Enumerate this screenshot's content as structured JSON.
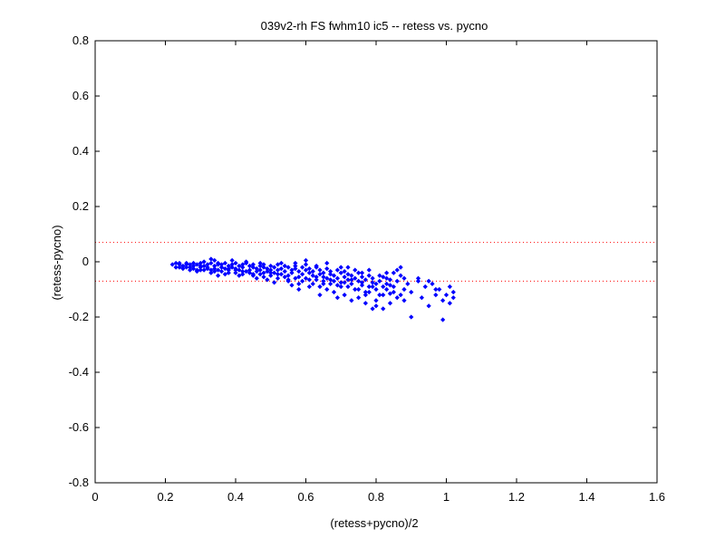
{
  "chart_data": {
    "type": "scatter",
    "title": "039v2-rh FS fwhm10 ic5 -- retess vs. pycno",
    "xlabel": "(retess+pycno)/2",
    "ylabel": "(retess-pycno)",
    "xlim": [
      0,
      1.6
    ],
    "ylim": [
      -0.8,
      0.8
    ],
    "xticks": [
      0,
      0.2,
      0.4,
      0.6,
      0.8,
      1,
      1.2,
      1.4,
      1.6
    ],
    "yticks": [
      -0.8,
      -0.6,
      -0.4,
      -0.2,
      0,
      0.2,
      0.4,
      0.6,
      0.8
    ],
    "xtick_labels": [
      "0",
      "0.2",
      "0.4",
      "0.6",
      "0.8",
      "1",
      "1.2",
      "1.4",
      "1.6"
    ],
    "ytick_labels": [
      "-0.8",
      "-0.6",
      "-0.4",
      "-0.2",
      "0",
      "0.2",
      "0.4",
      "0.6",
      "0.8"
    ],
    "grid": false,
    "reference_lines": [
      {
        "y": 0.07,
        "style": "dotted",
        "color": "#ff0000"
      },
      {
        "y": -0.07,
        "style": "dotted",
        "color": "#ff0000"
      }
    ],
    "series": [
      {
        "marker": "point",
        "color": "#0000ff",
        "points": [
          [
            0.22,
            -0.01
          ],
          [
            0.23,
            -0.02
          ],
          [
            0.23,
            -0.005
          ],
          [
            0.24,
            -0.01
          ],
          [
            0.24,
            -0.02
          ],
          [
            0.25,
            -0.015
          ],
          [
            0.26,
            -0.005
          ],
          [
            0.27,
            -0.01
          ],
          [
            0.27,
            -0.02
          ],
          [
            0.28,
            -0.015
          ],
          [
            0.28,
            -0.025
          ],
          [
            0.29,
            -0.01
          ],
          [
            0.29,
            -0.03
          ],
          [
            0.3,
            -0.02
          ],
          [
            0.3,
            -0.005
          ],
          [
            0.31,
            -0.015
          ],
          [
            0.31,
            -0.03
          ],
          [
            0.32,
            -0.01
          ],
          [
            0.32,
            -0.02
          ],
          [
            0.33,
            -0.005
          ],
          [
            0.33,
            0.01
          ],
          [
            0.33,
            -0.03
          ],
          [
            0.34,
            -0.015
          ],
          [
            0.34,
            -0.025
          ],
          [
            0.35,
            -0.01
          ],
          [
            0.35,
            -0.03
          ],
          [
            0.35,
            -0.005
          ],
          [
            0.36,
            -0.02
          ],
          [
            0.36,
            -0.01
          ],
          [
            0.37,
            -0.025
          ],
          [
            0.37,
            -0.005
          ],
          [
            0.38,
            -0.015
          ],
          [
            0.38,
            -0.03
          ],
          [
            0.39,
            -0.01
          ],
          [
            0.39,
            -0.02
          ],
          [
            0.4,
            -0.005
          ],
          [
            0.4,
            -0.025
          ],
          [
            0.4,
            -0.04
          ],
          [
            0.41,
            -0.015
          ],
          [
            0.41,
            -0.03
          ],
          [
            0.42,
            -0.01
          ],
          [
            0.42,
            -0.02
          ],
          [
            0.43,
            -0.035
          ],
          [
            0.43,
            -0.005
          ],
          [
            0.44,
            -0.015
          ],
          [
            0.44,
            -0.03
          ],
          [
            0.45,
            -0.02
          ],
          [
            0.45,
            -0.01
          ],
          [
            0.45,
            -0.045
          ],
          [
            0.46,
            -0.025
          ],
          [
            0.46,
            -0.035
          ],
          [
            0.47,
            -0.015
          ],
          [
            0.47,
            -0.03
          ],
          [
            0.48,
            -0.02
          ],
          [
            0.48,
            -0.04
          ],
          [
            0.48,
            -0.01
          ],
          [
            0.49,
            -0.025
          ],
          [
            0.49,
            -0.035
          ],
          [
            0.5,
            -0.015
          ],
          [
            0.5,
            -0.03
          ],
          [
            0.5,
            -0.05
          ],
          [
            0.51,
            -0.02
          ],
          [
            0.51,
            -0.04
          ],
          [
            0.52,
            -0.01
          ],
          [
            0.52,
            -0.03
          ],
          [
            0.53,
            -0.025
          ],
          [
            0.53,
            -0.045
          ],
          [
            0.54,
            -0.015
          ],
          [
            0.54,
            -0.035
          ],
          [
            0.55,
            -0.02
          ],
          [
            0.55,
            -0.05
          ],
          [
            0.55,
            -0.065
          ],
          [
            0.56,
            -0.03
          ],
          [
            0.56,
            -0.04
          ],
          [
            0.57,
            -0.015
          ],
          [
            0.57,
            -0.025
          ],
          [
            0.58,
            -0.035
          ],
          [
            0.58,
            -0.055
          ],
          [
            0.59,
            -0.02
          ],
          [
            0.59,
            -0.045
          ],
          [
            0.6,
            -0.03
          ],
          [
            0.6,
            -0.06
          ],
          [
            0.6,
            -0.01
          ],
          [
            0.61,
            -0.04
          ],
          [
            0.61,
            -0.025
          ],
          [
            0.62,
            -0.05
          ],
          [
            0.62,
            -0.035
          ],
          [
            0.63,
            -0.02
          ],
          [
            0.63,
            -0.065
          ],
          [
            0.64,
            -0.045
          ],
          [
            0.64,
            -0.03
          ],
          [
            0.65,
            -0.055
          ],
          [
            0.65,
            -0.04
          ],
          [
            0.65,
            -0.08
          ],
          [
            0.66,
            -0.025
          ],
          [
            0.66,
            -0.06
          ],
          [
            0.67,
            -0.045
          ],
          [
            0.67,
            -0.035
          ],
          [
            0.68,
            -0.07
          ],
          [
            0.68,
            -0.05
          ],
          [
            0.69,
            -0.03
          ],
          [
            0.69,
            -0.06
          ],
          [
            0.7,
            -0.04
          ],
          [
            0.7,
            -0.075
          ],
          [
            0.7,
            -0.09
          ],
          [
            0.71,
            -0.055
          ],
          [
            0.71,
            -0.035
          ],
          [
            0.72,
            -0.065
          ],
          [
            0.72,
            -0.045
          ],
          [
            0.73,
            -0.08
          ],
          [
            0.73,
            -0.05
          ],
          [
            0.74,
            -0.06
          ],
          [
            0.74,
            -0.1
          ],
          [
            0.75,
            -0.04
          ],
          [
            0.75,
            -0.07
          ],
          [
            0.76,
            -0.085
          ],
          [
            0.76,
            -0.055
          ],
          [
            0.77,
            -0.065
          ],
          [
            0.77,
            -0.11
          ],
          [
            0.78,
            -0.05
          ],
          [
            0.78,
            -0.09
          ],
          [
            0.79,
            -0.075
          ],
          [
            0.79,
            -0.06
          ],
          [
            0.8,
            -0.1
          ],
          [
            0.8,
            -0.08
          ],
          [
            0.8,
            -0.14
          ],
          [
            0.81,
            -0.07
          ],
          [
            0.81,
            -0.12
          ],
          [
            0.82,
            -0.09
          ],
          [
            0.82,
            -0.055
          ],
          [
            0.83,
            -0.08
          ],
          [
            0.83,
            -0.1
          ],
          [
            0.84,
            -0.065
          ],
          [
            0.84,
            -0.115
          ],
          [
            0.85,
            -0.04
          ],
          [
            0.85,
            -0.09
          ],
          [
            0.86,
            -0.03
          ],
          [
            0.86,
            -0.07
          ],
          [
            0.87,
            -0.05
          ],
          [
            0.87,
            -0.12
          ],
          [
            0.88,
            -0.06
          ],
          [
            0.88,
            -0.1
          ],
          [
            0.89,
            -0.08
          ],
          [
            0.9,
            -0.2
          ],
          [
            0.9,
            -0.11
          ],
          [
            0.92,
            -0.07
          ],
          [
            0.93,
            -0.13
          ],
          [
            0.94,
            -0.09
          ],
          [
            0.95,
            -0.16
          ],
          [
            0.96,
            -0.08
          ],
          [
            0.97,
            -0.12
          ],
          [
            0.98,
            -0.1
          ],
          [
            0.99,
            -0.21
          ],
          [
            0.99,
            -0.14
          ],
          [
            1,
            -0.12
          ],
          [
            1.01,
            -0.09
          ],
          [
            1.01,
            -0.15
          ],
          [
            1.02,
            -0.11
          ],
          [
            1.02,
            -0.13
          ],
          [
            0.79,
            -0.17
          ],
          [
            0.77,
            -0.15
          ],
          [
            0.75,
            -0.13
          ],
          [
            0.71,
            -0.12
          ],
          [
            0.68,
            -0.11
          ],
          [
            0.66,
            -0.1
          ],
          [
            0.64,
            -0.09
          ],
          [
            0.62,
            -0.08
          ],
          [
            0.58,
            -0.08
          ],
          [
            0.55,
            -0.07
          ],
          [
            0.52,
            -0.06
          ],
          [
            0.48,
            -0.055
          ],
          [
            0.45,
            -0.05
          ],
          [
            0.42,
            -0.045
          ],
          [
            0.38,
            -0.04
          ],
          [
            0.36,
            -0.035
          ],
          [
            0.3,
            -0.03
          ],
          [
            0.26,
            -0.02
          ],
          [
            0.6,
            0.005
          ],
          [
            0.66,
            -0.005
          ],
          [
            0.72,
            -0.02
          ],
          [
            0.78,
            -0.03
          ],
          [
            0.83,
            -0.04
          ],
          [
            0.87,
            -0.02
          ],
          [
            0.84,
            -0.15
          ],
          [
            0.82,
            -0.17
          ],
          [
            0.92,
            -0.06
          ],
          [
            0.95,
            -0.07
          ],
          [
            0.97,
            -0.1
          ],
          [
            0.7,
            -0.02
          ],
          [
            0.74,
            -0.03
          ],
          [
            0.76,
            -0.04
          ],
          [
            0.81,
            -0.05
          ],
          [
            0.63,
            -0.015
          ],
          [
            0.57,
            -0.005
          ],
          [
            0.53,
            -0.005
          ],
          [
            0.47,
            -0.005
          ],
          [
            0.43,
            0.0
          ],
          [
            0.39,
            0.005
          ],
          [
            0.34,
            0.005
          ],
          [
            0.31,
            0.0
          ],
          [
            0.69,
            -0.13
          ],
          [
            0.73,
            -0.14
          ],
          [
            0.77,
            -0.12
          ],
          [
            0.8,
            -0.16
          ],
          [
            0.86,
            -0.13
          ],
          [
            0.88,
            -0.14
          ],
          [
            0.61,
            -0.09
          ],
          [
            0.58,
            -0.1
          ],
          [
            0.56,
            -0.085
          ],
          [
            0.51,
            -0.075
          ],
          [
            0.49,
            -0.065
          ],
          [
            0.46,
            -0.06
          ],
          [
            0.41,
            -0.05
          ],
          [
            0.37,
            -0.045
          ],
          [
            0.35,
            -0.05
          ],
          [
            0.33,
            -0.04
          ],
          [
            0.29,
            -0.035
          ],
          [
            0.27,
            -0.03
          ],
          [
            0.25,
            -0.025
          ],
          [
            0.64,
            -0.12
          ],
          [
            0.67,
            -0.08
          ],
          [
            0.72,
            -0.09
          ],
          [
            0.75,
            -0.1
          ],
          [
            0.78,
            -0.11
          ],
          [
            0.82,
            -0.12
          ],
          [
            0.85,
            -0.11
          ],
          [
            0.84,
            -0.085
          ],
          [
            0.83,
            -0.06
          ],
          [
            0.79,
            -0.09
          ],
          [
            0.76,
            -0.075
          ],
          [
            0.73,
            -0.065
          ],
          [
            0.71,
            -0.075
          ],
          [
            0.69,
            -0.085
          ],
          [
            0.67,
            -0.065
          ],
          [
            0.65,
            -0.07
          ],
          [
            0.63,
            -0.055
          ],
          [
            0.61,
            -0.065
          ],
          [
            0.59,
            -0.07
          ],
          [
            0.57,
            -0.06
          ],
          [
            0.54,
            -0.055
          ],
          [
            0.52,
            -0.045
          ],
          [
            0.5,
            -0.04
          ],
          [
            0.47,
            -0.045
          ],
          [
            0.44,
            -0.04
          ],
          [
            0.42,
            -0.035
          ],
          [
            0.4,
            -0.03
          ],
          [
            0.38,
            -0.025
          ],
          [
            0.36,
            -0.02
          ],
          [
            0.34,
            -0.035
          ],
          [
            0.32,
            -0.025
          ],
          [
            0.3,
            -0.015
          ],
          [
            0.28,
            -0.005
          ],
          [
            0.26,
            -0.01
          ],
          [
            0.24,
            -0.005
          ]
        ]
      }
    ]
  }
}
